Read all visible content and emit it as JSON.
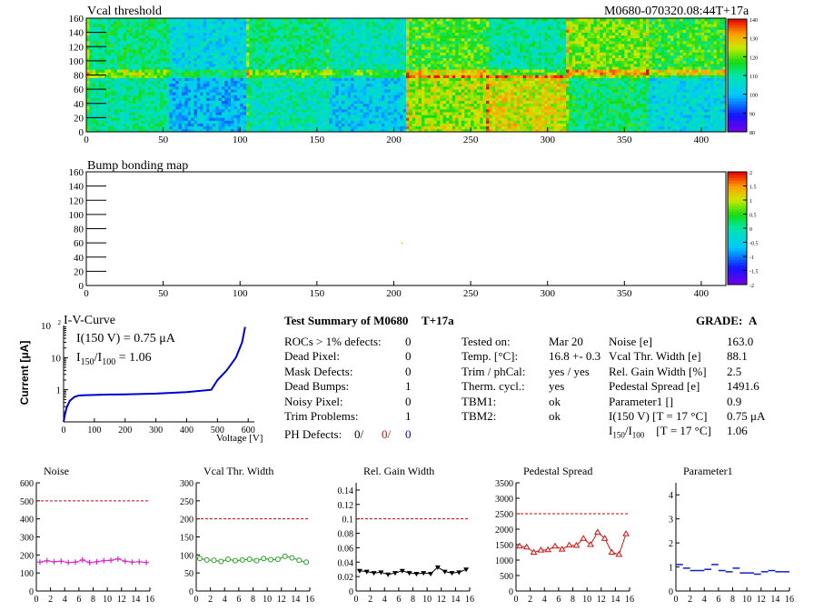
{
  "header": {
    "vcal_title": "Vcal threshold",
    "module_id": "M0680-070320.08:44T+17a",
    "bump_title": "Bump bonding map"
  },
  "colors": {
    "noise": "#e020d0",
    "vcal": "#20a020",
    "gain": "#000000",
    "pedestal": "#d01010",
    "param1": "#1020c0",
    "limit": "#cc0000",
    "iv": "#0000cc"
  },
  "iv": {
    "title": "I-V-Curve",
    "i150": "I(150 V) = 0.75 μA",
    "ratio_label_main": "I",
    "ratio_sub1": "150",
    "ratio_sep": "/I",
    "ratio_sub2": "100",
    "ratio_value": "= 1.06",
    "ylabel": "Current [μA]",
    "xlabel": "Voltage [V]"
  },
  "summary": {
    "title": "Test Summary of M0680",
    "run": "T+17a",
    "grade_label": "GRADE:",
    "grade": "A",
    "defects": [
      {
        "label": "ROCs > 1% defects:",
        "value": "0"
      },
      {
        "label": "Dead Pixel:",
        "value": "0"
      },
      {
        "label": "Mask Defects:",
        "value": "0"
      },
      {
        "label": "Dead Bumps:",
        "value": "1"
      },
      {
        "label": "Noisy Pixel:",
        "value": "0"
      },
      {
        "label": "Trim Problems:",
        "value": "1"
      }
    ],
    "ph_label": "PH Defects:",
    "ph_values": [
      "0/",
      "0/",
      "0"
    ],
    "tests": [
      {
        "label": "Tested on:",
        "value": "Mar 20"
      },
      {
        "label": "Temp. [°C]:",
        "value": "16.8 +- 0.3"
      },
      {
        "label": "Trim / phCal:",
        "value": "yes / yes"
      },
      {
        "label": "Therm. cycl.:",
        "value": "yes"
      },
      {
        "label": "TBM1:",
        "value": "ok"
      },
      {
        "label": "TBM2:",
        "value": "ok"
      }
    ],
    "metrics": [
      {
        "label": "Noise [e]",
        "value": "163.0"
      },
      {
        "label": "Vcal Thr. Width [e]",
        "value": "88.1"
      },
      {
        "label": "Rel. Gain Width [%]",
        "value": "2.5"
      },
      {
        "label": "Pedestal Spread [e]",
        "value": "1491.6"
      },
      {
        "label": "Parameter1 []",
        "value": "0.9"
      },
      {
        "label": "I(150 V)  [T = 17 °C]",
        "value": "0.75 μA"
      },
      {
        "label": "I150/I100  [T = 17 °C]",
        "value": "1.06"
      }
    ]
  },
  "chart_data": [
    {
      "type": "heatmap",
      "title": "Vcal threshold",
      "xlim": [
        0,
        416
      ],
      "ylim": [
        0,
        160
      ],
      "xticks": [
        0,
        50,
        100,
        150,
        200,
        250,
        300,
        350,
        400
      ],
      "yticks": [
        0,
        20,
        40,
        60,
        80,
        100,
        120,
        140,
        160
      ],
      "zlim": [
        80,
        140
      ],
      "zticks": [
        80,
        90,
        100,
        110,
        120,
        130,
        140
      ],
      "roc_levels_top": [
        112,
        104,
        112,
        108,
        118,
        110,
        121,
        117
      ],
      "roc_levels_bottom": [
        110,
        100,
        108,
        102,
        123,
        126,
        113,
        104
      ]
    },
    {
      "type": "heatmap",
      "title": "Bump bonding map",
      "xlim": [
        0,
        416
      ],
      "ylim": [
        0,
        160
      ],
      "xticks": [
        0,
        50,
        100,
        150,
        200,
        250,
        300,
        350,
        400
      ],
      "yticks": [
        0,
        20,
        40,
        60,
        80,
        100,
        120,
        140,
        160
      ],
      "zlim": [
        -2,
        2
      ],
      "zticks": [
        -2,
        -1.5,
        -1,
        -0.5,
        0,
        0.5,
        1,
        1.5,
        2
      ],
      "points": [
        {
          "x": 205,
          "y": 60
        }
      ]
    },
    {
      "type": "line",
      "title": "I-V-Curve",
      "xlabel": "Voltage [V]",
      "ylabel": "Current [μA]",
      "log_y": true,
      "xlim": [
        0,
        620
      ],
      "ylim": [
        0.1,
        100
      ],
      "xticks": [
        0,
        100,
        200,
        300,
        400,
        500,
        600
      ],
      "x": [
        0,
        5,
        10,
        20,
        35,
        50,
        70,
        100,
        150,
        200,
        300,
        400,
        480,
        500,
        530,
        560,
        580,
        590
      ],
      "y": [
        0.1,
        0.18,
        0.28,
        0.45,
        0.6,
        0.66,
        0.68,
        0.69,
        0.71,
        0.72,
        0.76,
        0.85,
        1.0,
        2.0,
        4.0,
        10.0,
        30.0,
        90.0
      ]
    },
    {
      "type": "line",
      "title": "Noise",
      "xlim": [
        0,
        16
      ],
      "ylim": [
        0,
        600
      ],
      "xticks": [
        0,
        2,
        4,
        6,
        8,
        10,
        12,
        14,
        16
      ],
      "yticks": [
        0,
        100,
        200,
        300,
        400,
        500,
        600
      ],
      "limit": 500,
      "x": [
        0.5,
        1.5,
        2.5,
        3.5,
        4.5,
        5.5,
        6.5,
        7.5,
        8.5,
        9.5,
        10.5,
        11.5,
        12.5,
        13.5,
        14.5,
        15.5
      ],
      "values": [
        160,
        168,
        162,
        165,
        158,
        160,
        172,
        158,
        162,
        168,
        170,
        178,
        165,
        160,
        162,
        158
      ]
    },
    {
      "type": "line",
      "title": "Vcal Thr. Width",
      "xlim": [
        0,
        16
      ],
      "ylim": [
        0,
        300
      ],
      "xticks": [
        0,
        2,
        4,
        6,
        8,
        10,
        12,
        14,
        16
      ],
      "yticks": [
        0,
        50,
        100,
        150,
        200,
        250,
        300
      ],
      "limit": 200,
      "x": [
        0.5,
        1.5,
        2.5,
        3.5,
        4.5,
        5.5,
        6.5,
        7.5,
        8.5,
        9.5,
        10.5,
        11.5,
        12.5,
        13.5,
        14.5,
        15.5
      ],
      "values": [
        90,
        86,
        85,
        82,
        88,
        84,
        86,
        88,
        84,
        90,
        87,
        88,
        96,
        92,
        85,
        80
      ]
    },
    {
      "type": "line",
      "title": "Rel. Gain Width",
      "xlim": [
        0,
        16
      ],
      "ylim": [
        0,
        0.15
      ],
      "xticks": [
        0,
        2,
        4,
        6,
        8,
        10,
        12,
        14,
        16
      ],
      "yticks": [
        0,
        0.02,
        0.04,
        0.06,
        0.08,
        0.1,
        0.12,
        0.14
      ],
      "limit": 0.1,
      "x": [
        0.5,
        1.5,
        2.5,
        3.5,
        4.5,
        5.5,
        6.5,
        7.5,
        8.5,
        9.5,
        10.5,
        11.5,
        12.5,
        13.5,
        14.5,
        15.5
      ],
      "values": [
        0.028,
        0.027,
        0.025,
        0.026,
        0.023,
        0.025,
        0.028,
        0.025,
        0.024,
        0.025,
        0.024,
        0.033,
        0.027,
        0.025,
        0.026,
        0.03
      ]
    },
    {
      "type": "line",
      "title": "Pedestal Spread",
      "xlim": [
        0,
        16
      ],
      "ylim": [
        0,
        3500
      ],
      "xticks": [
        0,
        2,
        4,
        6,
        8,
        10,
        12,
        14,
        16
      ],
      "yticks": [
        0,
        500,
        1000,
        1500,
        2000,
        2500,
        3000,
        3500
      ],
      "limit": 2500,
      "x": [
        0.5,
        1.5,
        2.5,
        3.5,
        4.5,
        5.5,
        6.5,
        7.5,
        8.5,
        9.5,
        10.5,
        11.5,
        12.5,
        13.5,
        14.5,
        15.5
      ],
      "values": [
        1450,
        1420,
        1250,
        1320,
        1330,
        1450,
        1350,
        1480,
        1470,
        1700,
        1500,
        1900,
        1700,
        1250,
        1180,
        1850
      ]
    },
    {
      "type": "line",
      "title": "Parameter1",
      "xlim": [
        0,
        16
      ],
      "ylim": [
        0,
        4.5
      ],
      "xticks": [
        0,
        2,
        4,
        6,
        8,
        10,
        12,
        14,
        16
      ],
      "yticks": [
        0,
        1,
        2,
        3,
        4
      ],
      "x": [
        0.5,
        1.5,
        2.5,
        3.5,
        4.5,
        5.5,
        6.5,
        7.5,
        8.5,
        9.5,
        10.5,
        11.5,
        12.5,
        13.5,
        14.5,
        15.5
      ],
      "values": [
        1.1,
        0.95,
        0.85,
        0.85,
        0.9,
        1.1,
        0.85,
        0.8,
        0.95,
        0.75,
        0.75,
        0.7,
        0.8,
        0.85,
        0.8,
        0.8
      ]
    }
  ]
}
